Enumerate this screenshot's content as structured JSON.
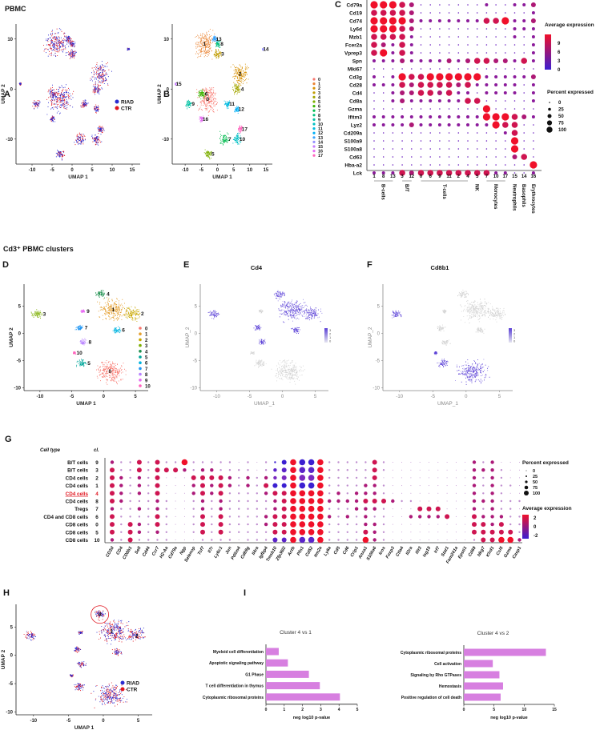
{
  "figure": {
    "section1_title": "PBMC",
    "section2_title": "Cd3⁺ PBMC clusters",
    "panel_labels": [
      "A",
      "B",
      "C",
      "D",
      "E",
      "F",
      "G",
      "H",
      "I"
    ]
  },
  "colors": {
    "riad": "#2a2ad0",
    "ctr": "#e0141e",
    "expr_low": "#3b1fd1",
    "expr_high": "#f0102a",
    "bar": "#d77fe0",
    "feature_high": "#5a3fd6",
    "feature_low": "#d8d8d8"
  },
  "chart_data": [
    {
      "id": "A",
      "type": "scatter",
      "title": "",
      "xlabel": "UMAP 1",
      "ylabel": "UMAP 2",
      "xticks": [
        -10,
        -5,
        0,
        5,
        10,
        15
      ],
      "yticks": [
        10,
        0,
        -10
      ],
      "xlim": [
        -14,
        17
      ],
      "ylim": [
        -15,
        13
      ],
      "legend": [
        {
          "name": "RIAD",
          "color": "#2a2ad0"
        },
        {
          "name": "CTR",
          "color": "#e0141e"
        }
      ],
      "legend_position": "right"
    },
    {
      "id": "B",
      "type": "scatter",
      "xlabel": "UMAP 1",
      "ylabel": "UMAP 2",
      "xticks": [
        -10,
        -5,
        0,
        5,
        10,
        15
      ],
      "yticks": [
        10,
        0,
        -10
      ],
      "xlim": [
        -14,
        17
      ],
      "ylim": [
        -15,
        13
      ],
      "clusters": [
        {
          "id": "0",
          "center": [
            -3,
            -2
          ],
          "spread": 2.2,
          "color": "#f8766d"
        },
        {
          "id": "1",
          "center": [
            -4,
            9
          ],
          "spread": 2.2,
          "color": "#ea8331"
        },
        {
          "id": "2",
          "center": [
            7,
            3
          ],
          "spread": 1.8,
          "color": "#d89000"
        },
        {
          "id": "3",
          "center": [
            0,
            7
          ],
          "spread": 0.8,
          "color": "#c09b00"
        },
        {
          "id": "4",
          "center": [
            6,
            0
          ],
          "spread": 0.9,
          "color": "#a3a500"
        },
        {
          "id": "5",
          "center": [
            -3,
            -13
          ],
          "spread": 0.8,
          "color": "#7cae00"
        },
        {
          "id": "6",
          "center": [
            -5,
            -1
          ],
          "spread": 0.8,
          "color": "#39b600"
        },
        {
          "id": "7",
          "center": [
            2,
            -10
          ],
          "spread": 1.0,
          "color": "#00bb4e"
        },
        {
          "id": "8",
          "center": [
            0,
            9
          ],
          "spread": 0.6,
          "color": "#00bf7d"
        },
        {
          "id": "9",
          "center": [
            -9,
            -3
          ],
          "spread": 0.7,
          "color": "#00c1a3"
        },
        {
          "id": "10",
          "center": [
            6,
            -10
          ],
          "spread": 0.9,
          "color": "#00bfc4"
        },
        {
          "id": "11",
          "center": [
            3,
            -3
          ],
          "spread": 0.7,
          "color": "#00bae0"
        },
        {
          "id": "12",
          "center": [
            6,
            -4
          ],
          "spread": 0.6,
          "color": "#00b0f6"
        },
        {
          "id": "13",
          "center": [
            -1,
            10
          ],
          "spread": 0.6,
          "color": "#35a2ff"
        },
        {
          "id": "14",
          "center": [
            14,
            8
          ],
          "spread": 0.2,
          "color": "#9590ff"
        },
        {
          "id": "15",
          "center": [
            -13,
            1
          ],
          "spread": 0.2,
          "color": "#c77cff"
        },
        {
          "id": "16",
          "center": [
            -5,
            -6
          ],
          "spread": 0.5,
          "color": "#e76bf3"
        },
        {
          "id": "17",
          "center": [
            7,
            -8
          ],
          "spread": 0.6,
          "color": "#ff62bc"
        }
      ]
    },
    {
      "id": "C",
      "type": "dotplot",
      "title": "",
      "genes": [
        "Cd79a",
        "Cd19",
        "Cd74",
        "Ly6d",
        "Mzb1",
        "Fcer2a",
        "Vprep3",
        "Spn",
        "Mki67",
        "Cd3g",
        "Cd28",
        "Cd4",
        "Cd8a",
        "Gzma",
        "Ifitm3",
        "Lyz2",
        "Cd209a",
        "S100a9",
        "S100a8",
        "Cd63",
        "Hba-a2",
        "Lck"
      ],
      "clusters": [
        "1",
        "8",
        "13",
        "3",
        "12",
        "0",
        "6",
        "9",
        "11",
        "2",
        "4",
        "5",
        "7",
        "10",
        "17",
        "15",
        "14",
        "16"
      ],
      "groups": [
        {
          "label": "B-cells",
          "span": 3
        },
        {
          "label": "B/T",
          "span": 2
        },
        {
          "label": "T-cells",
          "span": 6
        },
        {
          "label": "NK",
          "span": 1
        },
        {
          "label": "Monocytes",
          "span": 3
        },
        {
          "label": "Neutrophils",
          "span": 1
        },
        {
          "label": "Basophils",
          "span": 1
        },
        {
          "label": "Erythrocytes",
          "span": 1
        }
      ],
      "percent_level_matrix": [
        "444320000000100112",
        "333320000000000001",
        "444421111111334112",
        "444320000000000111",
        "333310000000000101",
        "321310000000000001",
        "341310000000000001",
        "111211112123322131",
        "000000000000000000",
        "101433444444111112",
        "111323333231111101",
        "001223323110111101",
        "001211111133000001",
        "000000000000400000",
        "111111111111444321",
        "111121111111143300",
        "000000000000001300",
        "000000000000000400",
        "000000000000000400",
        "000000000000000230",
        "000000000000000004",
        "111323333333311001"
      ],
      "color_legend": {
        "title": "Average expression",
        "ticks": [
          9,
          6,
          3,
          0
        ]
      },
      "size_legend": {
        "title": "Percent expressed",
        "ticks": [
          0,
          25,
          50,
          75,
          100
        ]
      }
    },
    {
      "id": "D",
      "type": "scatter",
      "xlabel": "UMAP 1",
      "ylabel": "UMAP 2",
      "xticks": [
        -10,
        -5,
        0,
        5
      ],
      "yticks": [
        5,
        0,
        -5,
        -10
      ],
      "xlim": [
        -12.5,
        7
      ],
      "ylim": [
        -10.5,
        9
      ],
      "clusters": [
        {
          "id": "0",
          "center": [
            1,
            -7
          ],
          "spread": 1.6,
          "color": "#f8766d"
        },
        {
          "id": "1",
          "center": [
            1.5,
            4.3
          ],
          "spread": 1.6,
          "color": "#e5a030"
        },
        {
          "id": "2",
          "center": [
            4.5,
            3.6
          ],
          "spread": 1.0,
          "color": "#c9a800"
        },
        {
          "id": "3",
          "center": [
            -10.5,
            3.5
          ],
          "spread": 0.6,
          "color": "#7cae00"
        },
        {
          "id": "4",
          "center": [
            -0.5,
            7.2
          ],
          "spread": 0.6,
          "color": "#1e8f4e"
        },
        {
          "id": "5",
          "center": [
            -3.5,
            -5.5
          ],
          "spread": 0.6,
          "color": "#00a69a"
        },
        {
          "id": "6",
          "center": [
            2,
            0.6
          ],
          "spread": 0.5,
          "color": "#00b4e0"
        },
        {
          "id": "7",
          "center": [
            -3.8,
            1
          ],
          "spread": 0.45,
          "color": "#2196f3"
        },
        {
          "id": "8",
          "center": [
            -3.2,
            -1.6
          ],
          "spread": 0.45,
          "color": "#b983ff"
        },
        {
          "id": "9",
          "center": [
            -3.3,
            4
          ],
          "spread": 0.25,
          "color": "#e76bf3"
        },
        {
          "id": "10",
          "center": [
            -4.6,
            -3.6
          ],
          "spread": 0.2,
          "color": "#ff62bc"
        }
      ]
    },
    {
      "id": "E",
      "type": "scatter",
      "title": "Cd4",
      "xlabel": "UMAP_1",
      "ylabel": "UMAP_2",
      "xticks": [
        -10,
        -5,
        0,
        5
      ],
      "yticks": [
        5,
        0,
        -5,
        -10
      ],
      "colorbar_ticks": [
        3,
        2,
        1,
        0
      ],
      "high_clusters": [
        "1",
        "2",
        "4",
        "6",
        "7",
        "8",
        "3"
      ]
    },
    {
      "id": "F",
      "type": "scatter",
      "title": "Cd8b1",
      "xlabel": "UMAP_1",
      "ylabel": "UMAP_2",
      "xticks": [
        -10,
        -5,
        0,
        5
      ],
      "yticks": [
        5,
        0,
        -5,
        -10
      ],
      "colorbar_ticks": [
        3,
        2,
        1,
        0
      ],
      "high_clusters": [
        "0",
        "5",
        "3",
        "10"
      ]
    },
    {
      "id": "G",
      "type": "dotplot",
      "header": {
        "cell_type": "Cell type",
        "cluster": "cl."
      },
      "rows": [
        {
          "cell_type": "B/T cells",
          "cluster": "9",
          "highlight": false
        },
        {
          "cell_type": "B/T cells",
          "cluster": "3",
          "highlight": false
        },
        {
          "cell_type": "CD4 cells",
          "cluster": "2",
          "highlight": false
        },
        {
          "cell_type": "CD4 cells",
          "cluster": "1",
          "highlight": false
        },
        {
          "cell_type": "CD4 cells",
          "cluster": "4",
          "highlight": true
        },
        {
          "cell_type": "CD4 cells",
          "cluster": "8",
          "highlight": false
        },
        {
          "cell_type": "Tregs",
          "cluster": "7",
          "highlight": false
        },
        {
          "cell_type": "CD4 and CD8 cells",
          "cluster": "6",
          "highlight": false
        },
        {
          "cell_type": "CD8 cells",
          "cluster": "0",
          "highlight": false
        },
        {
          "cell_type": "CD8 cells",
          "cluster": "5",
          "highlight": false
        },
        {
          "cell_type": "CD8 cells",
          "cluster": "10",
          "highlight": false
        }
      ],
      "genes": [
        "CD3d",
        "CD4",
        "CD8b1",
        "Sell",
        "Cd44",
        "Ccr7",
        "H2-Aa",
        "Cd79a",
        "Ngp",
        "Selenop",
        "Tcf7",
        "Il7r",
        "Ly6c1",
        "Jun",
        "Pdlim4",
        "Cd69g",
        "Il4ra",
        "Igfbp4",
        "Tmsb10",
        "Zfp36l2",
        "Actb",
        "Pfn1",
        "Cd52",
        "Itm2a",
        "Ly6a",
        "Cd5",
        "Cd6",
        "Crip1",
        "Anxa1",
        "S100a6",
        "Icos",
        "Foxp3",
        "Ctla4",
        "Il2ra",
        "Ifit3",
        "Isg15",
        "Irf7",
        "Stat1",
        "Fam241a",
        "Epsti1",
        "Cd69",
        "Nkg7",
        "Klrd1",
        "Ccl5",
        "Gzma",
        "Casp1"
      ],
      "percent_level_matrix": [
        "2113131141111101011344441111131000000000212000",
        "3113133321221111012344441111131000000000222100",
        "3212130003333212122344441111130000000000212100",
        "3212130002323212133344441111221000000000212110",
        "3212130002323111123344441212221000000000212100",
        "3211121001212111112344442222333211000000222111",
        "2112121001212111112344441112221000333000212110",
        "3111131001313111123344442121211002222300322211",
        "3132131001313111123344441111221000000000332311",
        "3132121001313111113344441111321000000000333331",
        "2131111000111101113344441111421000000000133442"
      ],
      "color_legend": {
        "title": "Average expression",
        "ticks": [
          2,
          0,
          -2
        ]
      },
      "size_legend": {
        "title": "Percent expressed",
        "ticks": [
          0,
          25,
          50,
          75,
          100
        ]
      }
    },
    {
      "id": "H",
      "type": "scatter",
      "xlabel": "UMAP 1",
      "ylabel": "UMAP 2",
      "xticks": [
        -10,
        -5,
        0,
        5
      ],
      "yticks": [
        5,
        0,
        -5,
        -10
      ],
      "annotations": [
        "4",
        "1",
        "2"
      ],
      "legend": [
        {
          "name": "RIAD",
          "color": "#2a2ad0"
        },
        {
          "name": "CTR",
          "color": "#e0141e"
        }
      ]
    },
    {
      "id": "I1",
      "type": "bar",
      "orientation": "horizontal",
      "title": "Cluster 4 vs 1",
      "categories": [
        "Myeloid cell differentiation",
        "Apoptotic signaling pathway",
        "G1 Phase",
        "T cell differentiation in thymus",
        "Cytoplasmic ribosomal proteins"
      ],
      "values": [
        0.7,
        1.2,
        2.35,
        2.95,
        4.05
      ],
      "xlabel": "neg log10 p-value",
      "xlim": [
        0,
        5
      ],
      "xticks": [
        0,
        1,
        2,
        3,
        4,
        5
      ]
    },
    {
      "id": "I2",
      "type": "bar",
      "orientation": "horizontal",
      "title": "Cluster 4 vs 2",
      "categories": [
        "Cytoplasmic ribosomal proteins",
        "Cell activation",
        "Signaling by Rho GTPases",
        "Hemostasis",
        "Positive regulation of cell death"
      ],
      "values": [
        13.6,
        4.8,
        5.9,
        6.5,
        6.1
      ],
      "xlabel": "neg log10 p-value",
      "xlim": [
        0,
        15
      ],
      "xticks": [
        0,
        5,
        10,
        15
      ]
    }
  ]
}
